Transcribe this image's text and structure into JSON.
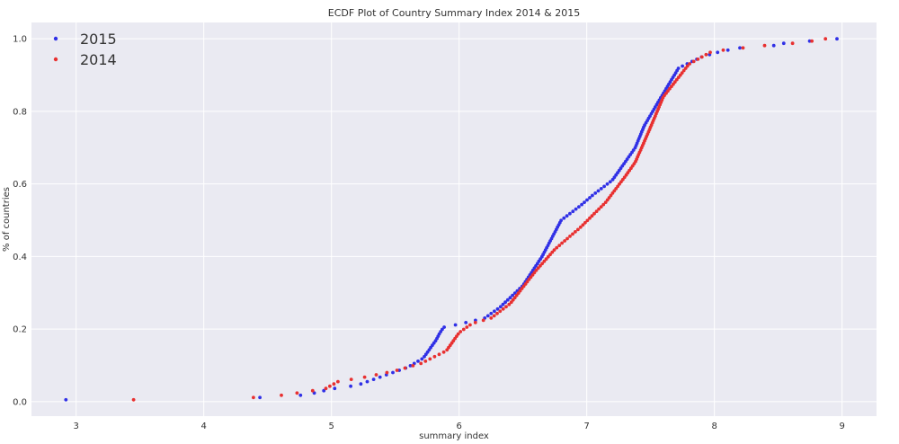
{
  "chart_data": {
    "type": "scatter",
    "title": "ECDF Plot of Country Summary Index 2014 & 2015",
    "xlabel": "summary index",
    "ylabel": "% of countries",
    "xlim": [
      2.65,
      9.27
    ],
    "ylim": [
      -0.04,
      1.045
    ],
    "x_ticks": [
      3,
      4,
      5,
      6,
      7,
      8,
      9
    ],
    "x_tick_labels": [
      "3",
      "4",
      "5",
      "6",
      "7",
      "8",
      "9"
    ],
    "y_ticks": [
      0.0,
      0.2,
      0.4,
      0.6,
      0.8,
      1.0
    ],
    "y_tick_labels": [
      "0.0",
      "0.2",
      "0.4",
      "0.6",
      "0.8",
      "1.0"
    ],
    "grid": true,
    "legend_position": "top-left",
    "background_color": "#eaeaf2",
    "series": [
      {
        "name": "2015",
        "color": "#3030e6",
        "anchors": [
          [
            2.92,
            0.005
          ],
          [
            4.62,
            0.012
          ],
          [
            4.82,
            0.02
          ],
          [
            5.0,
            0.035
          ],
          [
            5.2,
            0.045
          ],
          [
            5.6,
            0.095
          ],
          [
            5.72,
            0.12
          ],
          [
            5.82,
            0.17
          ],
          [
            5.85,
            0.19
          ],
          [
            5.88,
            0.205
          ],
          [
            6.02,
            0.215
          ],
          [
            6.2,
            0.23
          ],
          [
            6.32,
            0.26
          ],
          [
            6.5,
            0.32
          ],
          [
            6.65,
            0.4
          ],
          [
            6.8,
            0.5
          ],
          [
            6.95,
            0.54
          ],
          [
            7.05,
            0.57
          ],
          [
            7.2,
            0.61
          ],
          [
            7.38,
            0.7
          ],
          [
            7.45,
            0.76
          ],
          [
            7.55,
            0.82
          ],
          [
            7.72,
            0.92
          ],
          [
            7.9,
            0.95
          ],
          [
            8.05,
            0.965
          ],
          [
            8.2,
            0.975
          ],
          [
            8.45,
            0.98
          ],
          [
            8.55,
            0.988
          ],
          [
            8.96,
            1.0
          ]
        ]
      },
      {
        "name": "2014",
        "color": "#e83030",
        "anchors": [
          [
            3.45,
            0.005
          ],
          [
            4.5,
            0.012
          ],
          [
            4.95,
            0.035
          ],
          [
            5.05,
            0.055
          ],
          [
            5.3,
            0.07
          ],
          [
            5.5,
            0.085
          ],
          [
            5.7,
            0.105
          ],
          [
            5.9,
            0.14
          ],
          [
            6.0,
            0.19
          ],
          [
            6.1,
            0.215
          ],
          [
            6.25,
            0.23
          ],
          [
            6.4,
            0.27
          ],
          [
            6.6,
            0.36
          ],
          [
            6.75,
            0.42
          ],
          [
            6.95,
            0.48
          ],
          [
            7.15,
            0.55
          ],
          [
            7.3,
            0.62
          ],
          [
            7.38,
            0.66
          ],
          [
            7.48,
            0.74
          ],
          [
            7.6,
            0.84
          ],
          [
            7.8,
            0.93
          ],
          [
            7.98,
            0.965
          ],
          [
            8.1,
            0.97
          ],
          [
            8.35,
            0.98
          ],
          [
            8.7,
            0.99
          ],
          [
            8.87,
            1.0
          ]
        ]
      }
    ]
  }
}
